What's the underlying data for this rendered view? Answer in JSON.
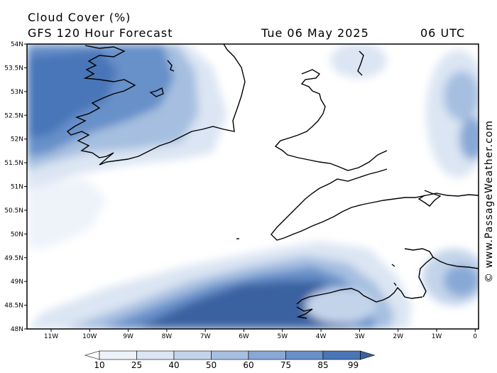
{
  "header": {
    "title": "Cloud Cover (%)",
    "model": "GFS 120 Hour Forecast",
    "date": "Tue 06 May 2025",
    "time": "06 UTC"
  },
  "axes": {
    "lat_labels": [
      "54N",
      "53.5N",
      "53N",
      "52.5N",
      "52N",
      "51.5N",
      "51N",
      "50.5N",
      "50N",
      "49.5N",
      "49N",
      "48.5N",
      "48N"
    ],
    "lon_labels": [
      "11W",
      "10W",
      "9W",
      "8W",
      "7W",
      "6W",
      "5W",
      "4W",
      "3W",
      "2W",
      "1W",
      "0"
    ]
  },
  "legend": {
    "values": [
      "10",
      "25",
      "40",
      "50",
      "60",
      "75",
      "85",
      "99"
    ],
    "colors": [
      "#ffffff",
      "#eef3fa",
      "#dbe5f3",
      "#c3d4ea",
      "#a6bfe0",
      "#88a9d6",
      "#6890c9",
      "#4a76b8",
      "#3a62a0"
    ]
  },
  "credit": "© www.PassageWeather.com"
}
